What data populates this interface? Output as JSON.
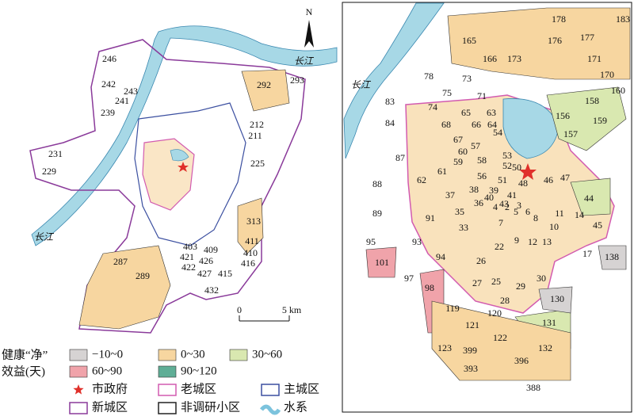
{
  "left_map": {
    "compass": "N",
    "river_labels": [
      "长江",
      "长江"
    ],
    "scale_labels": [
      "0",
      "5 km"
    ],
    "labels": [
      "246",
      "242",
      "243",
      "241",
      "239",
      "231",
      "229",
      "292",
      "293",
      "212",
      "211",
      "225",
      "313",
      "411",
      "403",
      "409",
      "410",
      "421",
      "426",
      "416",
      "422",
      "427",
      "415",
      "432",
      "287",
      "289"
    ]
  },
  "right_map": {
    "river_label": "长江",
    "labels": [
      "165",
      "166",
      "173",
      "178",
      "176",
      "177",
      "183",
      "171",
      "170",
      "160",
      "158",
      "156",
      "159",
      "157",
      "73",
      "75",
      "71",
      "78",
      "74",
      "83",
      "84",
      "63",
      "65",
      "68",
      "66",
      "64",
      "54",
      "67",
      "57",
      "87",
      "60",
      "59",
      "58",
      "53",
      "52",
      "50",
      "62",
      "61",
      "56",
      "51",
      "48",
      "46",
      "47",
      "88",
      "44",
      "37",
      "38",
      "39",
      "40",
      "41",
      "43",
      "89",
      "36",
      "4",
      "2",
      "3",
      "5",
      "6",
      "35",
      "91",
      "7",
      "8",
      "11",
      "14",
      "10",
      "45",
      "33",
      "95",
      "93",
      "9",
      "12",
      "13",
      "22",
      "17",
      "138",
      "101",
      "94",
      "26",
      "97",
      "30",
      "27",
      "25",
      "29",
      "98",
      "130",
      "28",
      "120",
      "119",
      "131",
      "121",
      "122",
      "123",
      "399",
      "132",
      "396",
      "393",
      "388"
    ]
  },
  "legend": {
    "title_lines": [
      "健康“净”",
      "效益(天)"
    ],
    "items": [
      {
        "label": "−10~0",
        "kind": "fill",
        "color": "#d6d3d3"
      },
      {
        "label": "0~30",
        "kind": "fill",
        "color": "#f7d6a0"
      },
      {
        "label": "30~60",
        "kind": "fill",
        "color": "#d9e8b0"
      },
      {
        "label": "60~90",
        "kind": "fill",
        "color": "#f0a3aa"
      },
      {
        "label": "90~120",
        "kind": "fill",
        "color": "#5fae96"
      },
      {
        "label": "市政府",
        "kind": "star",
        "color": "#e0302a"
      },
      {
        "label": "老城区",
        "kind": "outline",
        "color": "#d25bb0"
      },
      {
        "label": "主城区",
        "kind": "outline",
        "color": "#3b4fa0"
      },
      {
        "label": "新城区",
        "kind": "outline",
        "color": "#8a3a9a"
      },
      {
        "label": "非调研小区",
        "kind": "outline",
        "color": "#222222"
      },
      {
        "label": "水系",
        "kind": "wave",
        "color": "#7cc3dd"
      }
    ]
  }
}
